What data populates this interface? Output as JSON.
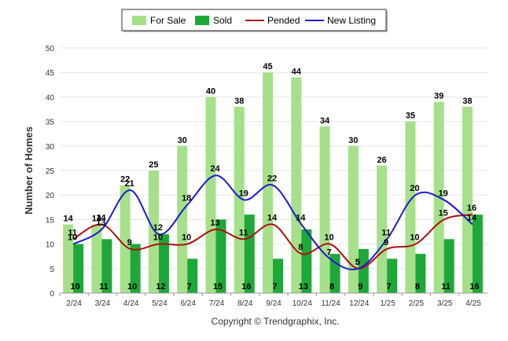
{
  "chart_data": {
    "type": "bar",
    "categories": [
      "2/24",
      "3/24",
      "4/24",
      "5/24",
      "6/24",
      "7/24",
      "8/24",
      "9/24",
      "10/24",
      "11/24",
      "12/24",
      "1/25",
      "2/25",
      "3/25",
      "4/25"
    ],
    "series": [
      {
        "name": "For Sale",
        "type": "bar",
        "color": "#a6e08a",
        "values": [
          14,
          14,
          22,
          25,
          30,
          40,
          38,
          45,
          44,
          34,
          30,
          26,
          35,
          39,
          38
        ]
      },
      {
        "name": "Sold",
        "type": "bar",
        "color": "#1ea83a",
        "values": [
          10,
          11,
          10,
          12,
          7,
          15,
          16,
          7,
          13,
          8,
          9,
          7,
          8,
          11,
          16
        ]
      },
      {
        "name": "Pended",
        "type": "line",
        "color": "#b01010",
        "values": [
          11,
          14,
          9,
          10,
          10,
          13,
          11,
          14,
          8,
          10,
          5,
          9,
          10,
          15,
          16
        ]
      },
      {
        "name": "New Listing",
        "type": "line",
        "color": "#1a1ad0",
        "values": [
          10,
          13,
          21,
          12,
          18,
          24,
          19,
          22,
          14,
          7,
          5,
          11,
          20,
          19,
          14
        ]
      }
    ],
    "ylabel": "Number of Homes",
    "xlabel": "",
    "ylim": [
      0,
      50
    ],
    "yticks": [
      0,
      5,
      10,
      15,
      20,
      25,
      30,
      35,
      40,
      45,
      50
    ],
    "grid": true,
    "legend": "top-center"
  },
  "footer": {
    "copyright": "Copyright © Trendgraphix, Inc."
  }
}
